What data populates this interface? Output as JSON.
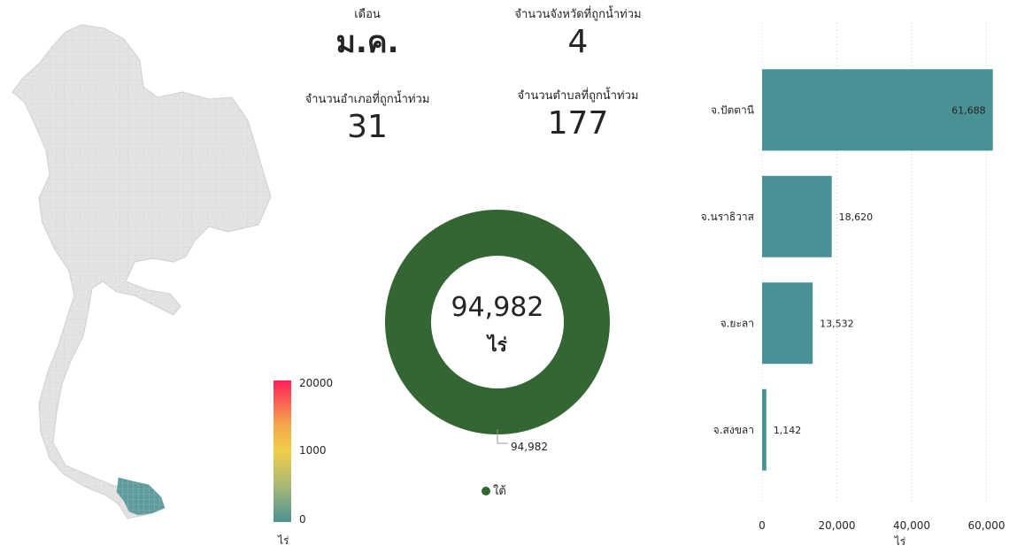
{
  "kpis": {
    "month": {
      "label": "เดือน",
      "value": "ม.ค."
    },
    "provinces": {
      "label": "จำนวนจังหวัดที่ถูกน้ำท่วม",
      "value": "4"
    },
    "districts": {
      "label": "จำนวนอำเภอที่ถูกน้ำท่วม",
      "value": "31"
    },
    "subdistricts": {
      "label": "จำนวนตำบลที่ถูกน้ำท่วม",
      "value": "177"
    }
  },
  "map_legend": {
    "ticks": [
      "20000",
      "1000",
      "0"
    ],
    "unit": "ไร่",
    "colors": [
      "#ff1f5a",
      "#f0cf4a",
      "#4e9295"
    ]
  },
  "donut": {
    "center_value": "94,982",
    "center_unit": "ไร่",
    "callout_label": "94,982",
    "legend_label": "ใต้",
    "color": "#336633",
    "slices": [
      {
        "name": "ใต้",
        "value": 94982
      }
    ]
  },
  "chart_data": {
    "type": "bar",
    "orientation": "horizontal",
    "categories": [
      "จ.ปัตตานี",
      "จ.นราธิวาส",
      "จ.ยะลา",
      "จ.สงขลา"
    ],
    "values": [
      61688,
      18620,
      13532,
      1142
    ],
    "value_labels": [
      "61,688",
      "18,620",
      "13,532",
      "1,142"
    ],
    "xlabel": "ไร่",
    "xlim": [
      0,
      62000
    ],
    "x_ticks": [
      0,
      20000,
      40000,
      60000
    ],
    "x_tick_labels": [
      "0",
      "20,000",
      "40,000",
      "60,000"
    ],
    "grid": true,
    "bar_color": "#4a9195"
  }
}
